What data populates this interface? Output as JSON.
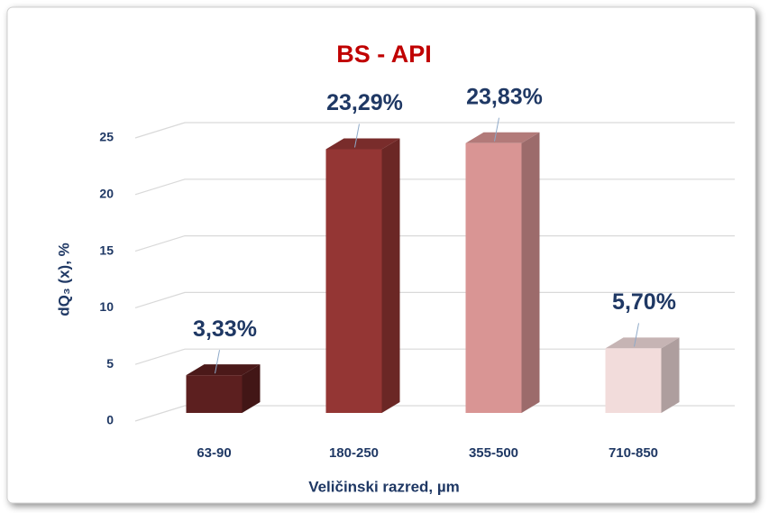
{
  "chart_data": {
    "type": "bar3d",
    "title": "BS - API",
    "x_label": "Veličinski razred, µm",
    "y_label": "dQ₃ (x), %",
    "categories": [
      "63-90",
      "180-250",
      "355-500",
      "710-850"
    ],
    "values": [
      3.33,
      23.29,
      23.83,
      5.7
    ],
    "value_labels": [
      "3,33%",
      "23,29%",
      "23,83%",
      "5,70%"
    ],
    "colors": [
      "#5c1f1f",
      "#943634",
      "#d99594",
      "#f2dcdb"
    ],
    "ylim": [
      0,
      25
    ],
    "yticks": [
      0,
      5,
      10,
      15,
      20,
      25
    ],
    "grid": true
  }
}
